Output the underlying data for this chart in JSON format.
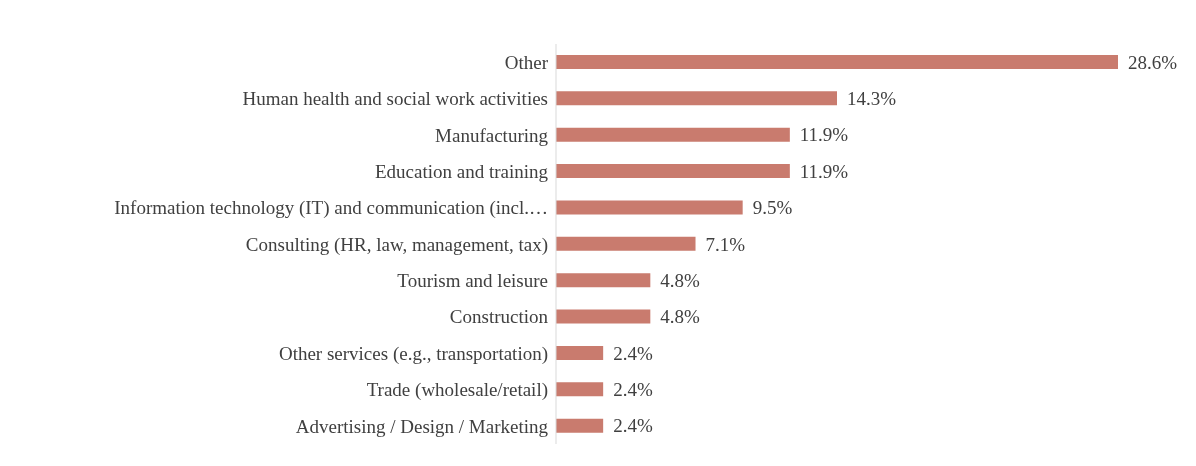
{
  "chart_data": {
    "type": "bar",
    "orientation": "horizontal",
    "categories": [
      "Other",
      "Human health and social work activities",
      "Manufacturing",
      "Education and training",
      "Information technology (IT) and communication (incl.…",
      "Consulting (HR, law, management, tax)",
      "Tourism and leisure",
      "Construction",
      "Other services (e.g., transportation)",
      "Trade (wholesale/retail)",
      "Advertising / Design / Marketing"
    ],
    "values": [
      28.6,
      14.3,
      11.9,
      11.9,
      9.5,
      7.1,
      4.8,
      4.8,
      2.4,
      2.4,
      2.4
    ],
    "value_labels": [
      "28.6%",
      "14.3%",
      "11.9%",
      "11.9%",
      "9.5%",
      "7.1%",
      "4.8%",
      "4.8%",
      "2.4%",
      "2.4%",
      "2.4%"
    ],
    "color": "#c97b6e",
    "grid": false,
    "legend": false
  }
}
